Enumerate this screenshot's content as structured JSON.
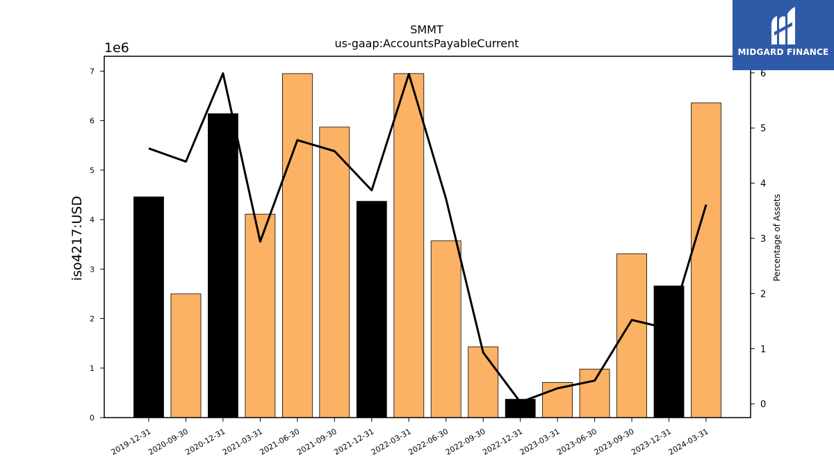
{
  "chart_data": {
    "type": "bar",
    "title": "SMMT",
    "subtitle": "us-gaap:AccountsPayableCurrent",
    "ylabel": "iso4217:USD",
    "y_offset_label": "1e6",
    "y2label": "Percentage of Assets",
    "categories": [
      "2019-12-31",
      "2020-09-30",
      "2020-12-31",
      "2021-03-31",
      "2021-06-30",
      "2021-09-30",
      "2021-12-31",
      "2022-03-31",
      "2022-06-30",
      "2022-09-30",
      "2022-12-31",
      "2023-03-31",
      "2023-06-30",
      "2023-09-30",
      "2023-12-31",
      "2024-03-31"
    ],
    "values": [
      4460000,
      2500000,
      6140000,
      4110000,
      6950000,
      5870000,
      4370000,
      6950000,
      3570000,
      1430000,
      370000,
      710000,
      980000,
      3310000,
      2660000,
      6360000
    ],
    "bar_colors": [
      "#000000",
      "#fbb265",
      "#000000",
      "#fbb265",
      "#fbb265",
      "#fbb265",
      "#000000",
      "#fbb265",
      "#fbb265",
      "#fbb265",
      "#000000",
      "#fbb265",
      "#fbb265",
      "#fbb265",
      "#000000",
      "#fbb265"
    ],
    "line_values": [
      4.63,
      4.39,
      5.99,
      2.94,
      4.78,
      4.58,
      3.87,
      5.98,
      3.72,
      0.93,
      0.03,
      0.28,
      0.42,
      1.52,
      1.36,
      3.61
    ],
    "line_color": "#000000",
    "ylim": [
      0,
      7300000
    ],
    "yticks": [
      0,
      1,
      2,
      3,
      4,
      5,
      6,
      7
    ],
    "y2lim": [
      -0.25,
      6.3
    ],
    "y2ticks": [
      0,
      1,
      2,
      3,
      4,
      5,
      6
    ],
    "grid": false
  },
  "logo": {
    "text": "MIDGARD FINANCE",
    "color": "#2f5aa8"
  }
}
